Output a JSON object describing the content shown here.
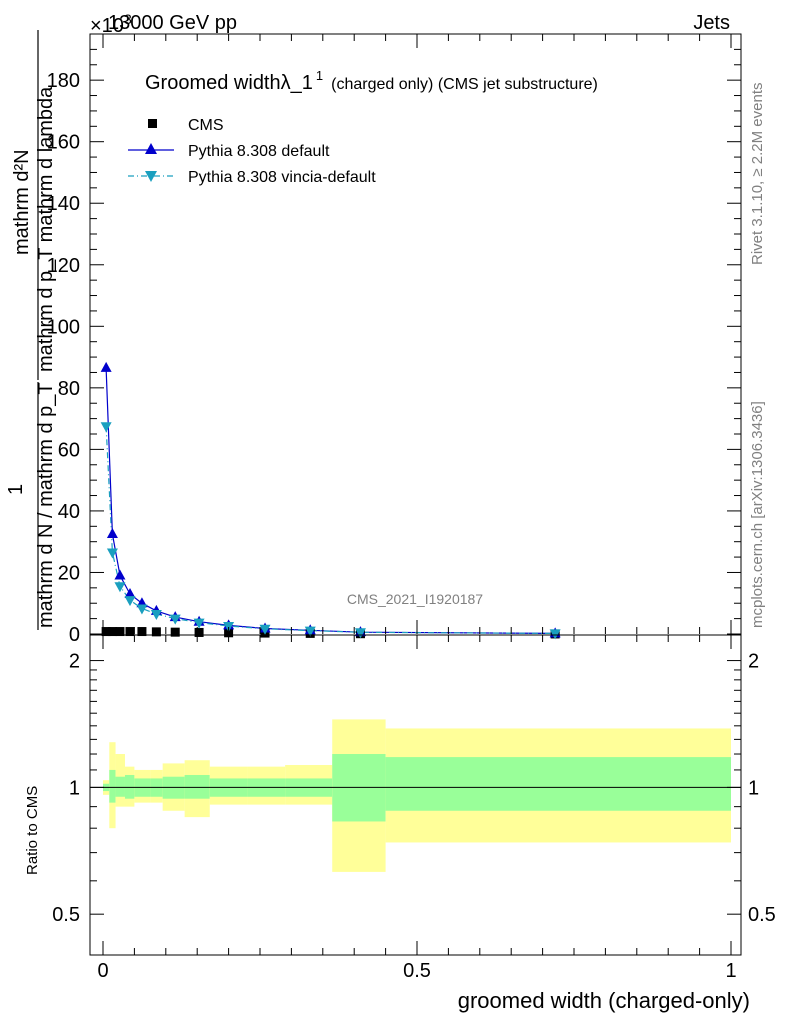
{
  "header": {
    "energy": "13000 GeV pp",
    "process": "Jets",
    "exponent": "×10",
    "exponent_power": "3"
  },
  "side_labels": {
    "rivet": "Rivet 3.1.10, ≥ 2.2M events",
    "mcplots": "mcplots.cern.ch [arXiv:1306.3436]"
  },
  "watermark": "CMS_2021_I1920187",
  "title": {
    "main": "Groomed width",
    "lambda": "λ_1",
    "sup": "1",
    "sub": "(charged only) (CMS jet substructure)"
  },
  "legend": {
    "cms": "CMS",
    "pythia_default": "Pythia 8.308 default",
    "pythia_vincia": "Pythia 8.308 vincia-default"
  },
  "ylabel": {
    "top_num": "mathrm d²N",
    "top_den": "mathrm d p_T mathrm d lambda",
    "bottom_num": "1",
    "bottom_den": "mathrm d N / mathrm d p_T"
  },
  "ratio_ylabel": "Ratio to CMS",
  "xlabel": "groomed width (charged-only)",
  "colors": {
    "pythia_default": "#0000cc",
    "pythia_vincia": "#1a9fbf",
    "band_inner": "#99ff99",
    "band_outer": "#ffff99",
    "cms": "#000000"
  },
  "chart_data": [
    {
      "type": "line",
      "panel": "main",
      "xlim": [
        0,
        1
      ],
      "ylim": [
        0,
        195
      ],
      "yscale_factor": 1000,
      "y_ticks": [
        0,
        20,
        40,
        60,
        80,
        100,
        120,
        140,
        160,
        180
      ],
      "x": [
        0.005,
        0.015,
        0.027,
        0.043,
        0.062,
        0.085,
        0.115,
        0.153,
        0.2,
        0.258,
        0.33,
        0.41,
        0.72
      ],
      "series": [
        {
          "name": "CMS",
          "marker": "square",
          "values": [
            0.8,
            0.8,
            0.8,
            0.8,
            0.8,
            0.7,
            0.6,
            0.5,
            0.4,
            0.3,
            0.2,
            0.1,
            0.02
          ]
        },
        {
          "name": "Pythia 8.308 default",
          "marker": "triangle-up",
          "values": [
            86.5,
            32.5,
            19,
            13,
            10,
            7.5,
            5.5,
            4,
            2.8,
            1.8,
            1.2,
            0.6,
            0.2
          ]
        },
        {
          "name": "Pythia 8.308 vincia-default",
          "marker": "triangle-down",
          "values": [
            67.5,
            26.5,
            15.5,
            11,
            8.3,
            6.5,
            5,
            3.7,
            2.6,
            1.7,
            1.1,
            0.55,
            0.2
          ]
        }
      ]
    },
    {
      "type": "area",
      "panel": "ratio",
      "xlim": [
        0,
        1
      ],
      "ylim": [
        0.4,
        2.3
      ],
      "y_scale": "log",
      "y_ticks": [
        0.5,
        1,
        2
      ],
      "x_ticks": [
        0,
        0.5,
        1
      ],
      "reference": 1,
      "bins": [
        {
          "x0": 0.0,
          "x1": 0.01,
          "inner": [
            0.98,
            1.02
          ],
          "outer": [
            0.96,
            1.04
          ]
        },
        {
          "x0": 0.01,
          "x1": 0.02,
          "inner": [
            0.92,
            1.1
          ],
          "outer": [
            0.8,
            1.28
          ]
        },
        {
          "x0": 0.02,
          "x1": 0.035,
          "inner": [
            0.95,
            1.06
          ],
          "outer": [
            0.9,
            1.2
          ]
        },
        {
          "x0": 0.035,
          "x1": 0.05,
          "inner": [
            0.94,
            1.07
          ],
          "outer": [
            0.9,
            1.12
          ]
        },
        {
          "x0": 0.05,
          "x1": 0.075,
          "inner": [
            0.95,
            1.05
          ],
          "outer": [
            0.92,
            1.1
          ]
        },
        {
          "x0": 0.075,
          "x1": 0.095,
          "inner": [
            0.95,
            1.05
          ],
          "outer": [
            0.92,
            1.1
          ]
        },
        {
          "x0": 0.095,
          "x1": 0.13,
          "inner": [
            0.94,
            1.06
          ],
          "outer": [
            0.88,
            1.14
          ]
        },
        {
          "x0": 0.13,
          "x1": 0.17,
          "inner": [
            0.94,
            1.07
          ],
          "outer": [
            0.85,
            1.16
          ]
        },
        {
          "x0": 0.17,
          "x1": 0.23,
          "inner": [
            0.95,
            1.05
          ],
          "outer": [
            0.91,
            1.12
          ]
        },
        {
          "x0": 0.23,
          "x1": 0.29,
          "inner": [
            0.95,
            1.05
          ],
          "outer": [
            0.91,
            1.12
          ]
        },
        {
          "x0": 0.29,
          "x1": 0.365,
          "inner": [
            0.95,
            1.05
          ],
          "outer": [
            0.91,
            1.13
          ]
        },
        {
          "x0": 0.365,
          "x1": 0.45,
          "inner": [
            0.83,
            1.2
          ],
          "outer": [
            0.63,
            1.45
          ]
        },
        {
          "x0": 0.45,
          "x1": 1.0,
          "inner": [
            0.88,
            1.18
          ],
          "outer": [
            0.74,
            1.38
          ]
        }
      ]
    }
  ]
}
